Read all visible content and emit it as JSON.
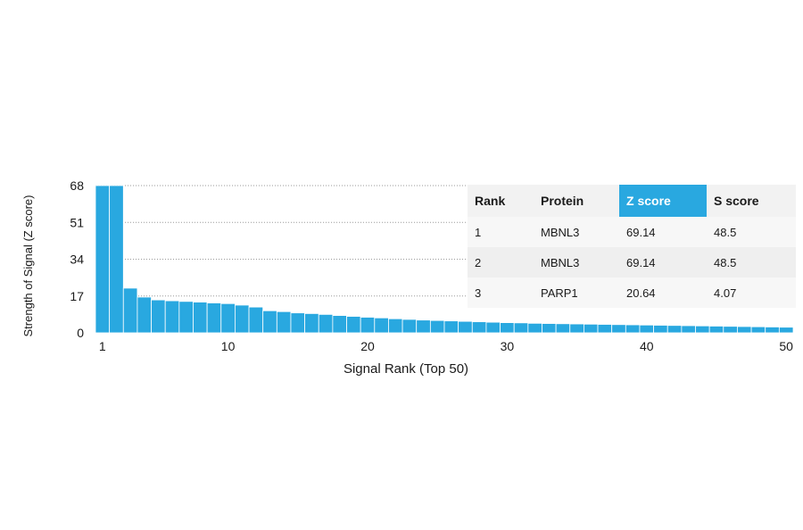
{
  "chart_data": {
    "type": "bar",
    "xlabel": "Signal Rank (Top 50)",
    "ylabel": "Strength of Signal (Z score)",
    "ylim": [
      0,
      68
    ],
    "yticks": [
      0,
      17,
      34,
      51,
      68
    ],
    "xticks": [
      1,
      10,
      20,
      30,
      40,
      50
    ],
    "grid": true,
    "categories": [
      1,
      2,
      3,
      4,
      5,
      6,
      7,
      8,
      9,
      10,
      11,
      12,
      13,
      14,
      15,
      16,
      17,
      18,
      19,
      20,
      21,
      22,
      23,
      24,
      25,
      26,
      27,
      28,
      29,
      30,
      31,
      32,
      33,
      34,
      35,
      36,
      37,
      38,
      39,
      40,
      41,
      42,
      43,
      44,
      45,
      46,
      47,
      48,
      49,
      50
    ],
    "values": [
      69.14,
      69.14,
      20.64,
      16.5,
      15.2,
      14.8,
      14.5,
      14.2,
      13.8,
      13.5,
      12.8,
      11.9,
      10.2,
      9.8,
      9.2,
      8.9,
      8.5,
      8.0,
      7.6,
      7.2,
      6.9,
      6.5,
      6.2,
      5.9,
      5.7,
      5.5,
      5.3,
      5.1,
      4.9,
      4.7,
      4.6,
      4.4,
      4.3,
      4.2,
      4.1,
      4.0,
      3.9,
      3.8,
      3.7,
      3.6,
      3.5,
      3.4,
      3.3,
      3.2,
      3.1,
      3.0,
      2.9,
      2.8,
      2.7,
      2.6
    ],
    "table": {
      "columns": [
        "Rank",
        "Protein",
        "Z score",
        "S score"
      ],
      "highlight_column": 2,
      "rows": [
        [
          "1",
          "MBNL3",
          "69.14",
          "48.5"
        ],
        [
          "2",
          "MBNL3",
          "69.14",
          "48.5"
        ],
        [
          "3",
          "PARP1",
          "20.64",
          "4.07"
        ]
      ]
    }
  },
  "colors": {
    "bar": "#29a8e0",
    "highlight": "#29a8e0"
  }
}
